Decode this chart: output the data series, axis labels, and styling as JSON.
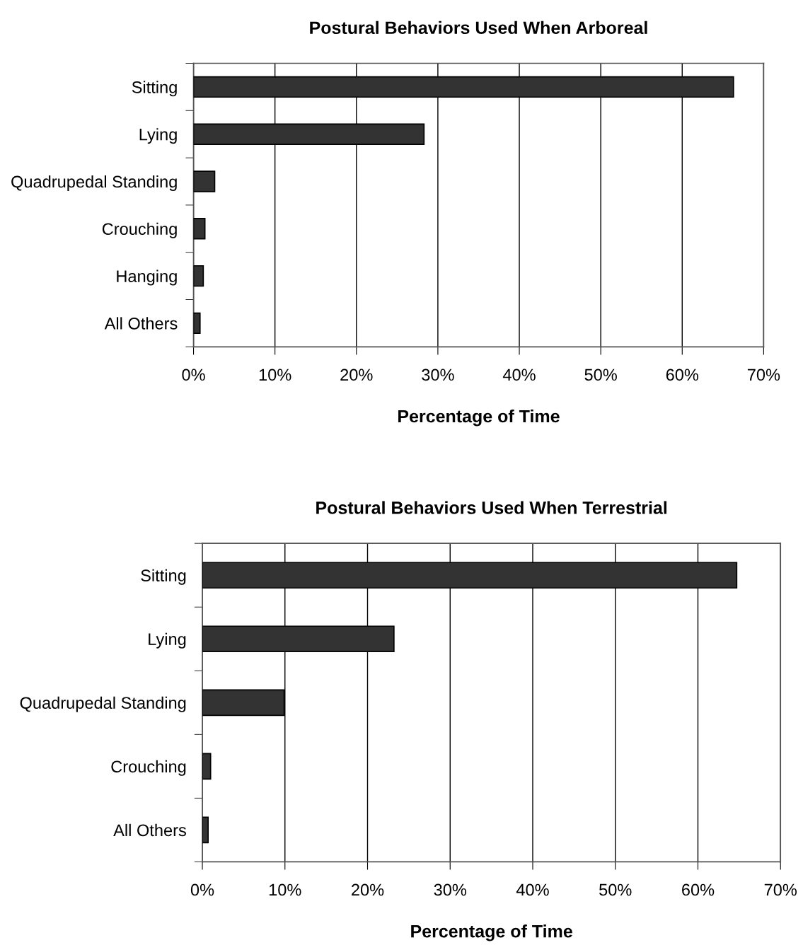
{
  "chart_data": [
    {
      "type": "bar",
      "orientation": "horizontal",
      "title": "Postural Behaviors Used When Arboreal",
      "xlabel": "Percentage of Time",
      "categories": [
        "Sitting",
        "Lying",
        "Quadrupedal Standing",
        "Crouching",
        "Hanging",
        "All Others"
      ],
      "values": [
        66.3,
        28.3,
        2.6,
        1.4,
        1.2,
        0.8
      ],
      "color": "#333333",
      "xlim": [
        0,
        70
      ],
      "xticks": [
        {
          "value": 0,
          "label": "0%"
        },
        {
          "value": 10,
          "label": "10%"
        },
        {
          "value": 20,
          "label": "20%"
        },
        {
          "value": 30,
          "label": "30%"
        },
        {
          "value": 40,
          "label": "40%"
        },
        {
          "value": 50,
          "label": "50%"
        },
        {
          "value": 60,
          "label": "60%"
        },
        {
          "value": 70,
          "label": "70%"
        }
      ],
      "grid": "x",
      "legend": false
    },
    {
      "type": "bar",
      "orientation": "horizontal",
      "title": "Postural Behaviors Used When Terrestrial",
      "xlabel": "Percentage of Time",
      "categories": [
        "Sitting",
        "Lying",
        "Quadrupedal Standing",
        "Crouching",
        "All Others"
      ],
      "values": [
        64.7,
        23.2,
        9.9,
        1.0,
        0.7
      ],
      "color": "#333333",
      "xlim": [
        0,
        70
      ],
      "xticks": [
        {
          "value": 0,
          "label": "0%"
        },
        {
          "value": 10,
          "label": "10%"
        },
        {
          "value": 20,
          "label": "20%"
        },
        {
          "value": 30,
          "label": "30%"
        },
        {
          "value": 40,
          "label": "40%"
        },
        {
          "value": 50,
          "label": "50%"
        },
        {
          "value": 60,
          "label": "60%"
        },
        {
          "value": 70,
          "label": "70%"
        }
      ],
      "grid": "x",
      "legend": false
    }
  ]
}
